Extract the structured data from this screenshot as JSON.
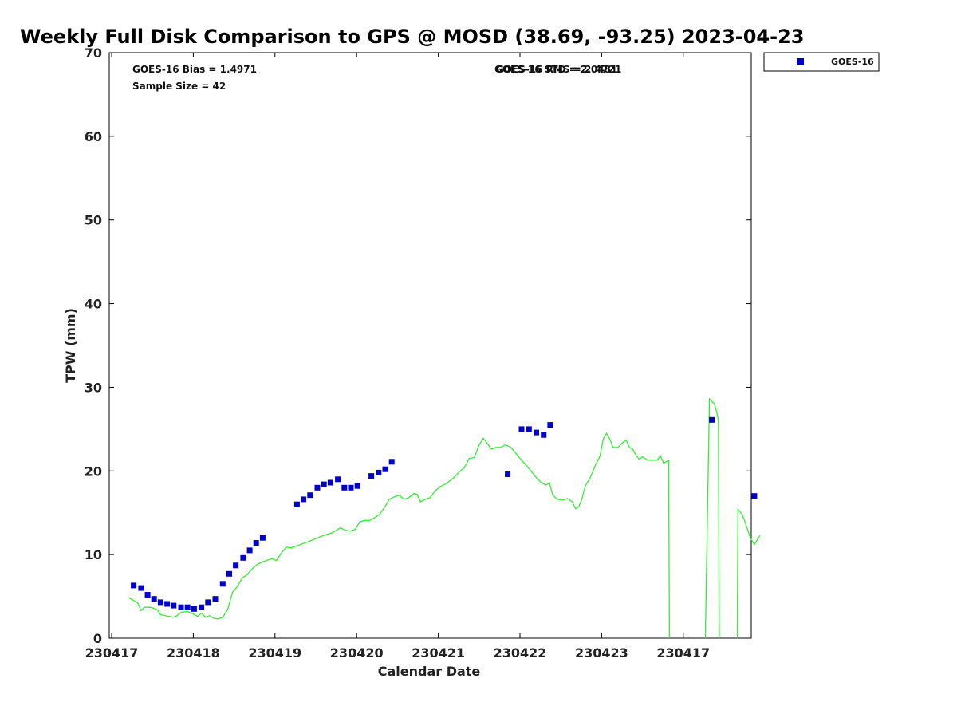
{
  "chart_data": {
    "type": "scatter",
    "title": "Weekly Full Disk Comparison to GPS @ MOSD (38.69, -93.25) 2023-04-23",
    "xlabel": "Calendar Date",
    "ylabel": "TPW (mm)",
    "xlim": [
      0,
      8
    ],
    "ylim": [
      0,
      70
    ],
    "x_tick_positions": [
      0,
      1,
      2,
      3,
      4,
      5,
      6,
      7
    ],
    "x_tick_labels": [
      "230417",
      "230418",
      "230419",
      "230420",
      "230421",
      "230422",
      "230423",
      "230417"
    ],
    "y_ticks": [
      0,
      10,
      20,
      30,
      40,
      50,
      60,
      70
    ],
    "grid": false,
    "legend_position": "top-right",
    "stats": {
      "bias": "GOES-16 Bias = 1.4971",
      "sample_size": "Sample Size = 42",
      "std": "GOES-16 STD = 2.0481",
      "rms": "GOES-16 RMS = 2.4721"
    },
    "series": [
      {
        "name": "GOES-16",
        "kind": "scatter",
        "color": "#0000cc",
        "points": [
          [
            0.27,
            6.3
          ],
          [
            0.36,
            6.0
          ],
          [
            0.44,
            5.2
          ],
          [
            0.52,
            4.7
          ],
          [
            0.6,
            4.3
          ],
          [
            0.68,
            4.1
          ],
          [
            0.76,
            3.9
          ],
          [
            0.85,
            3.7
          ],
          [
            0.93,
            3.7
          ],
          [
            1.01,
            3.5
          ],
          [
            1.1,
            3.7
          ],
          [
            1.18,
            4.3
          ],
          [
            1.27,
            4.7
          ],
          [
            1.36,
            6.5
          ],
          [
            1.44,
            7.7
          ],
          [
            1.52,
            8.7
          ],
          [
            1.61,
            9.6
          ],
          [
            1.69,
            10.5
          ],
          [
            1.77,
            11.4
          ],
          [
            1.85,
            12.0
          ],
          [
            2.27,
            16.0
          ],
          [
            2.35,
            16.6
          ],
          [
            2.43,
            17.1
          ],
          [
            2.52,
            18.0
          ],
          [
            2.6,
            18.4
          ],
          [
            2.68,
            18.6
          ],
          [
            2.77,
            19.0
          ],
          [
            2.85,
            18.0
          ],
          [
            2.93,
            18.0
          ],
          [
            3.01,
            18.2
          ],
          [
            3.18,
            19.4
          ],
          [
            3.27,
            19.8
          ],
          [
            3.35,
            20.2
          ],
          [
            3.43,
            21.1
          ],
          [
            4.85,
            19.6
          ],
          [
            5.02,
            25.0
          ],
          [
            5.11,
            25.0
          ],
          [
            5.2,
            24.6
          ],
          [
            5.29,
            24.3
          ],
          [
            5.37,
            25.5
          ],
          [
            7.35,
            26.1
          ],
          [
            7.87,
            17.0
          ]
        ]
      },
      {
        "kind": "line",
        "color": "#33ee33",
        "segments": [
          [
            [
              0.2,
              4.9
            ],
            [
              0.27,
              4.5
            ],
            [
              0.32,
              4.2
            ],
            [
              0.36,
              3.3
            ],
            [
              0.4,
              3.7
            ],
            [
              0.48,
              3.7
            ],
            [
              0.56,
              3.4
            ],
            [
              0.6,
              2.8
            ],
            [
              0.66,
              2.7
            ],
            [
              0.7,
              2.6
            ],
            [
              0.76,
              2.5
            ],
            [
              0.8,
              2.7
            ],
            [
              0.85,
              3.1
            ],
            [
              0.93,
              3.2
            ],
            [
              1.0,
              2.9
            ],
            [
              1.05,
              2.6
            ],
            [
              1.1,
              3.0
            ],
            [
              1.15,
              2.5
            ],
            [
              1.2,
              2.7
            ],
            [
              1.24,
              2.4
            ],
            [
              1.3,
              2.3
            ],
            [
              1.36,
              2.5
            ],
            [
              1.42,
              3.4
            ],
            [
              1.48,
              5.5
            ],
            [
              1.54,
              6.2
            ],
            [
              1.6,
              7.2
            ],
            [
              1.66,
              7.6
            ],
            [
              1.72,
              8.3
            ],
            [
              1.78,
              8.8
            ],
            [
              1.84,
              9.1
            ],
            [
              1.9,
              9.3
            ],
            [
              1.96,
              9.5
            ],
            [
              2.02,
              9.3
            ],
            [
              2.08,
              10.2
            ],
            [
              2.14,
              10.9
            ],
            [
              2.2,
              10.8
            ],
            [
              2.28,
              11.1
            ],
            [
              2.4,
              11.5
            ],
            [
              2.5,
              11.9
            ],
            [
              2.6,
              12.3
            ],
            [
              2.7,
              12.6
            ],
            [
              2.8,
              13.2
            ],
            [
              2.86,
              12.9
            ],
            [
              2.92,
              12.8
            ],
            [
              2.98,
              13.0
            ],
            [
              3.04,
              13.9
            ],
            [
              3.1,
              14.1
            ],
            [
              3.16,
              14.1
            ],
            [
              3.22,
              14.4
            ],
            [
              3.28,
              14.8
            ],
            [
              3.34,
              15.6
            ],
            [
              3.4,
              16.6
            ],
            [
              3.46,
              16.9
            ],
            [
              3.52,
              17.1
            ],
            [
              3.58,
              16.6
            ],
            [
              3.64,
              16.8
            ],
            [
              3.7,
              17.3
            ],
            [
              3.74,
              17.2
            ],
            [
              3.78,
              16.3
            ],
            [
              3.84,
              16.6
            ],
            [
              3.9,
              16.8
            ],
            [
              3.96,
              17.6
            ],
            [
              4.02,
              18.1
            ],
            [
              4.08,
              18.4
            ],
            [
              4.14,
              18.8
            ],
            [
              4.2,
              19.3
            ],
            [
              4.26,
              19.9
            ],
            [
              4.32,
              20.4
            ],
            [
              4.38,
              21.5
            ],
            [
              4.44,
              21.6
            ],
            [
              4.5,
              23.1
            ],
            [
              4.55,
              23.9
            ],
            [
              4.6,
              23.3
            ],
            [
              4.65,
              22.6
            ],
            [
              4.7,
              22.8
            ],
            [
              4.76,
              22.8
            ],
            [
              4.82,
              23.1
            ],
            [
              4.88,
              22.9
            ],
            [
              4.94,
              22.2
            ],
            [
              5.0,
              21.5
            ],
            [
              5.1,
              20.4
            ],
            [
              5.2,
              19.2
            ],
            [
              5.26,
              18.6
            ],
            [
              5.32,
              18.3
            ],
            [
              5.36,
              18.6
            ],
            [
              5.4,
              17.1
            ],
            [
              5.46,
              16.6
            ],
            [
              5.52,
              16.5
            ],
            [
              5.58,
              16.7
            ],
            [
              5.64,
              16.3
            ],
            [
              5.68,
              15.5
            ],
            [
              5.72,
              15.7
            ],
            [
              5.76,
              16.7
            ],
            [
              5.8,
              18.2
            ],
            [
              5.86,
              19.2
            ],
            [
              5.92,
              20.6
            ],
            [
              5.98,
              21.8
            ],
            [
              6.02,
              23.8
            ],
            [
              6.06,
              24.5
            ],
            [
              6.1,
              23.8
            ],
            [
              6.14,
              22.8
            ],
            [
              6.2,
              22.8
            ],
            [
              6.26,
              23.4
            ],
            [
              6.3,
              23.7
            ],
            [
              6.34,
              22.8
            ],
            [
              6.38,
              22.6
            ],
            [
              6.42,
              21.9
            ],
            [
              6.46,
              21.4
            ],
            [
              6.5,
              21.7
            ],
            [
              6.56,
              21.3
            ],
            [
              6.62,
              21.3
            ],
            [
              6.68,
              21.3
            ],
            [
              6.72,
              21.8
            ],
            [
              6.76,
              20.9
            ],
            [
              6.82,
              21.3
            ],
            [
              6.83,
              0
            ]
          ],
          [
            [
              7.27,
              0
            ],
            [
              7.32,
              28.6
            ],
            [
              7.38,
              28.0
            ],
            [
              7.41,
              27.0
            ],
            [
              7.43,
              26.0
            ],
            [
              7.44,
              0
            ]
          ],
          [
            [
              7.66,
              0
            ],
            [
              7.67,
              15.4
            ],
            [
              7.72,
              14.8
            ],
            [
              7.76,
              13.8
            ],
            [
              7.82,
              12.0
            ],
            [
              7.87,
              11.2
            ],
            [
              7.94,
              12.3
            ]
          ]
        ]
      }
    ]
  }
}
